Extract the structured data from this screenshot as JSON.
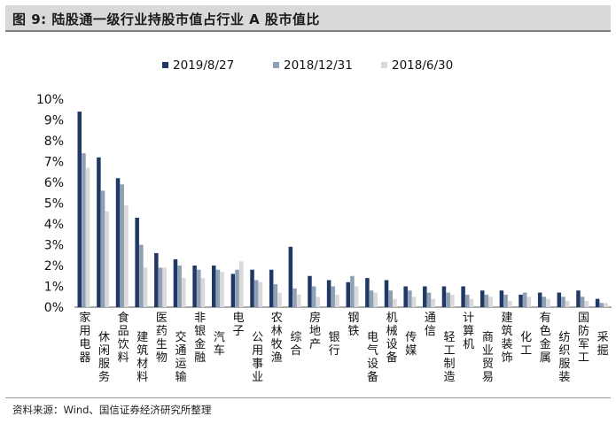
{
  "figure_title": "图 9:  陆股通一级行业持股市值占行业 A 股市值比",
  "source_note": "资料来源：Wind、国信证券经济研究所整理",
  "colors": {
    "series1": "#1f3864",
    "series2": "#8ea0b4",
    "series3": "#d9d9d9"
  },
  "chart_data": {
    "type": "bar",
    "categories": [
      "家用电器",
      "休闲服务",
      "食品饮料",
      "建筑材料",
      "医药生物",
      "交通运输",
      "非银金融",
      "汽车",
      "电子",
      "公用事业",
      "农林牧渔",
      "综合",
      "房地产",
      "银行",
      "钢铁",
      "电气设备",
      "机械设备",
      "传媒",
      "通信",
      "轻工制造",
      "计算机",
      "商业贸易",
      "建筑装饰",
      "化工",
      "有色金属",
      "纺织服装",
      "国防军工",
      "采掘"
    ],
    "series": [
      {
        "name": "2019/8/27",
        "values": [
          9.4,
          7.2,
          6.2,
          4.3,
          2.6,
          2.3,
          2.0,
          2.0,
          1.6,
          1.8,
          1.8,
          2.9,
          1.5,
          1.3,
          1.2,
          1.4,
          1.3,
          1.0,
          1.0,
          1.0,
          1.0,
          0.8,
          0.8,
          0.6,
          0.7,
          0.7,
          0.8,
          0.4
        ]
      },
      {
        "name": "2018/12/31",
        "values": [
          7.4,
          5.6,
          5.9,
          3.0,
          1.9,
          2.0,
          1.8,
          1.8,
          1.8,
          1.3,
          1.1,
          0.9,
          1.0,
          1.0,
          1.5,
          0.8,
          0.8,
          0.8,
          0.7,
          0.7,
          0.6,
          0.6,
          0.6,
          0.7,
          0.5,
          0.5,
          0.5,
          0.2
        ]
      },
      {
        "name": "2018/6/30",
        "values": [
          6.7,
          4.6,
          4.9,
          1.9,
          1.9,
          1.4,
          1.4,
          1.7,
          2.2,
          1.2,
          0.7,
          0.6,
          0.5,
          0.6,
          1.0,
          0.7,
          0.4,
          0.5,
          0.4,
          0.6,
          0.4,
          0.5,
          0.3,
          0.5,
          0.4,
          0.3,
          0.3,
          0.2
        ]
      }
    ],
    "ylim": [
      0,
      10
    ],
    "yticks": [
      "0%",
      "1%",
      "2%",
      "3%",
      "4%",
      "5%",
      "6%",
      "7%",
      "8%",
      "9%",
      "10%"
    ],
    "grid": false,
    "legend_position": "top-center"
  }
}
